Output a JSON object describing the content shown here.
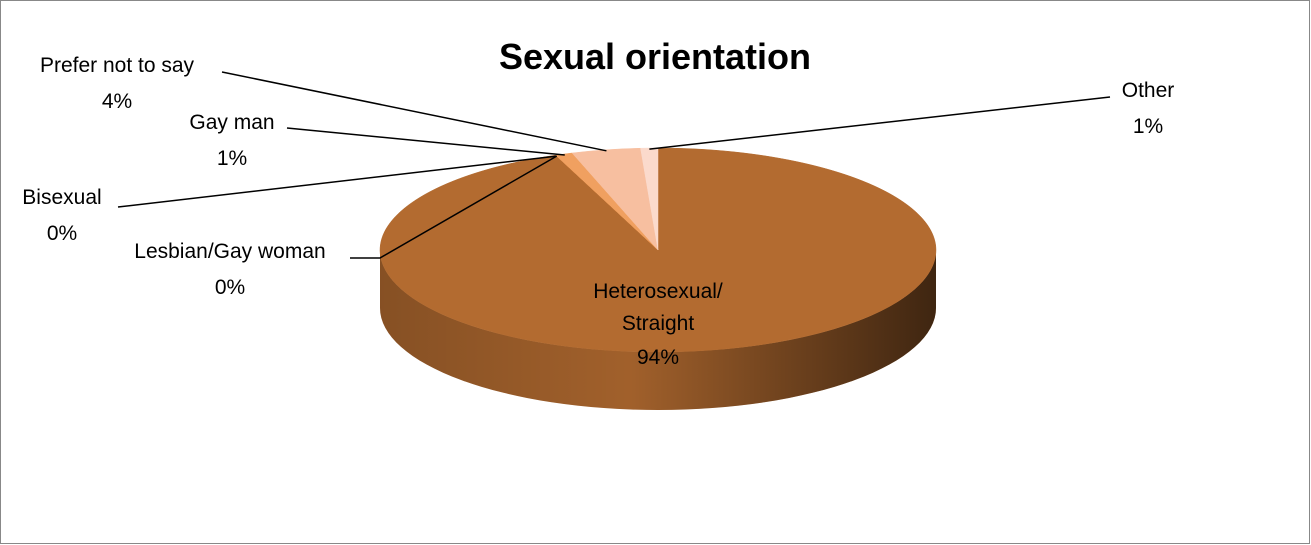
{
  "chart_data": {
    "type": "pie",
    "title": "Sexual orientation",
    "categories": [
      "Heterosexual/ Straight",
      "Lesbian/Gay woman",
      "Bisexual",
      "Gay man",
      "Prefer not to say",
      "Other"
    ],
    "values": [
      94,
      0,
      0,
      1,
      4,
      1
    ],
    "value_labels": [
      "94%",
      "0%",
      "0%",
      "1%",
      "4%",
      "1%"
    ],
    "colors": [
      "#b36b30",
      "#c97a3a",
      "#e0873e",
      "#f0a060",
      "#f7bfa0",
      "#fbdacc"
    ]
  }
}
